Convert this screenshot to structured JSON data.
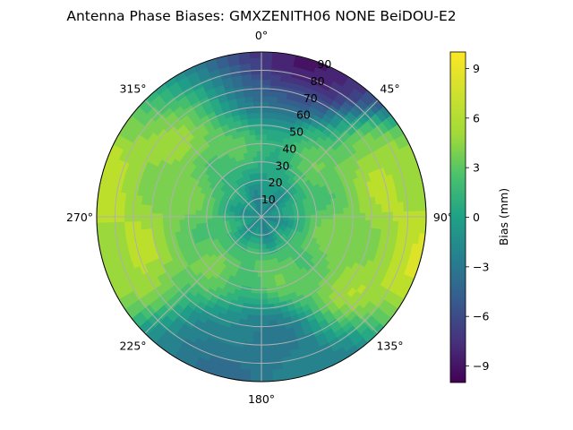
{
  "chart_data": {
    "type": "heatmap",
    "projection": "polar",
    "title": "Antenna Phase Biases: GMXZENITH06      NONE BeiDOU-E2",
    "angular_axis": {
      "zero_location": "top",
      "direction": "clockwise",
      "tick_labels": [
        "0°",
        "45°",
        "90°",
        "135°",
        "180°",
        "225°",
        "270°",
        "315°"
      ]
    },
    "radial_axis": {
      "range": [
        0,
        90
      ],
      "tick_labels": [
        "10",
        "20",
        "30",
        "40",
        "50",
        "60",
        "70",
        "80",
        "90"
      ]
    },
    "colorbar": {
      "label": "Bias (mm)",
      "range": [
        -10,
        10
      ],
      "ticks": [
        "-9",
        "-6",
        "-3",
        "0",
        "3",
        "6",
        "9"
      ],
      "colormap": "viridis"
    },
    "grid": true,
    "approximate_field_features": [
      {
        "azimuth": 280,
        "zenith": 72,
        "bias": 8
      },
      {
        "azimuth": 100,
        "zenith": 70,
        "bias": 8
      },
      {
        "azimuth": 315,
        "zenith": 70,
        "bias": 6
      },
      {
        "azimuth": 270,
        "zenith": 35,
        "bias": 5
      },
      {
        "azimuth": 90,
        "zenith": 40,
        "bias": 5
      },
      {
        "azimuth": 0,
        "zenith": 88,
        "bias": -8
      },
      {
        "azimuth": 180,
        "zenith": 85,
        "bias": -2
      },
      {
        "azimuth": 0,
        "zenith": 0,
        "bias": -1
      }
    ]
  }
}
